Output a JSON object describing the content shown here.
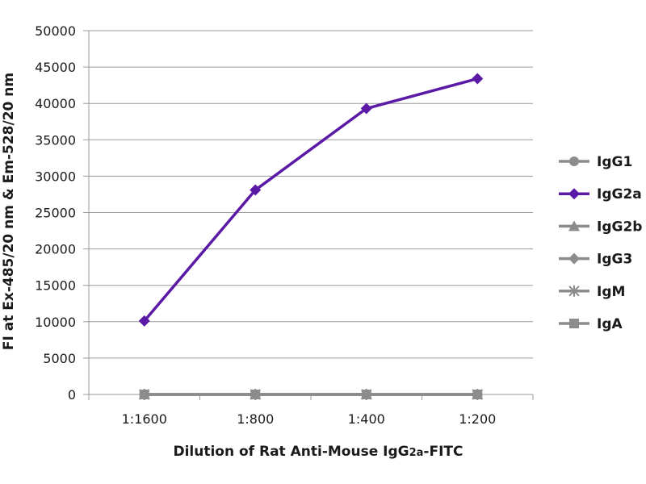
{
  "chart_data": {
    "type": "line",
    "categories": [
      "1:1600",
      "1:800",
      "1:400",
      "1:200"
    ],
    "series": [
      {
        "name": "IgG1",
        "values": [
          0,
          0,
          0,
          0
        ],
        "color": "#8c8c8c",
        "marker": "circle"
      },
      {
        "name": "IgG2a",
        "values": [
          10100,
          28100,
          39300,
          43400
        ],
        "color": "#5a1aa6",
        "marker": "diamond"
      },
      {
        "name": "IgG2b",
        "values": [
          0,
          0,
          0,
          0
        ],
        "color": "#8c8c8c",
        "marker": "triangle"
      },
      {
        "name": "IgG3",
        "values": [
          0,
          0,
          0,
          0
        ],
        "color": "#8c8c8c",
        "marker": "diamond"
      },
      {
        "name": "IgM",
        "values": [
          0,
          0,
          0,
          0
        ],
        "color": "#8c8c8c",
        "marker": "asterisk"
      },
      {
        "name": "IgA",
        "values": [
          0,
          0,
          0,
          0
        ],
        "color": "#8c8c8c",
        "marker": "square"
      }
    ],
    "xlabel": "Dilution of Rat Anti-Mouse IgG2a-FITC",
    "xlabel_parts": [
      "Dilution of Rat Anti-Mouse IgG",
      "2a",
      "-FITC"
    ],
    "ylabel": "FI at Ex-485/20 nm & Em-528/20 nm",
    "ylim": [
      0,
      50000
    ],
    "yticks": [
      0,
      5000,
      10000,
      15000,
      20000,
      25000,
      30000,
      35000,
      40000,
      45000,
      50000
    ],
    "grid": "horizontal",
    "legend_position": "right"
  }
}
